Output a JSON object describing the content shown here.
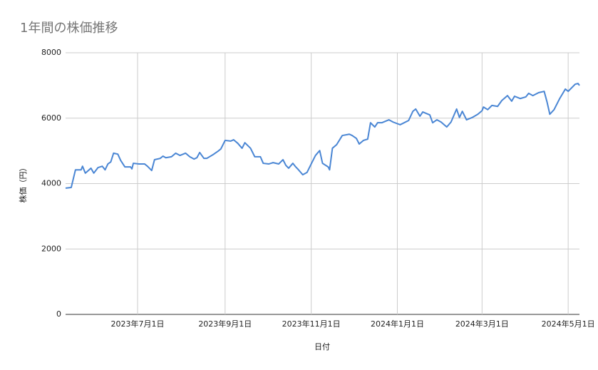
{
  "chart_data": {
    "type": "line",
    "title": "1年間の株価推移",
    "x_label": "日付",
    "y_label": "株価（円）",
    "x": [
      "2023-05-11",
      "2023-05-15",
      "2023-05-18",
      "2023-05-22",
      "2023-05-23",
      "2023-05-25",
      "2023-05-29",
      "2023-05-31",
      "2023-06-03",
      "2023-06-06",
      "2023-06-08",
      "2023-06-10",
      "2023-06-12",
      "2023-06-14",
      "2023-06-17",
      "2023-06-19",
      "2023-06-22",
      "2023-06-26",
      "2023-06-27",
      "2023-06-28",
      "2023-07-02",
      "2023-07-06",
      "2023-07-08",
      "2023-07-11",
      "2023-07-13",
      "2023-07-17",
      "2023-07-19",
      "2023-07-21",
      "2023-07-25",
      "2023-07-28",
      "2023-07-31",
      "2023-08-04",
      "2023-08-07",
      "2023-08-10",
      "2023-08-12",
      "2023-08-14",
      "2023-08-17",
      "2023-08-19",
      "2023-08-24",
      "2023-08-27",
      "2023-08-29",
      "2023-09-01",
      "2023-09-05",
      "2023-09-07",
      "2023-09-10",
      "2023-09-13",
      "2023-09-15",
      "2023-09-19",
      "2023-09-22",
      "2023-09-26",
      "2023-09-28",
      "2023-10-02",
      "2023-10-05",
      "2023-10-09",
      "2023-10-12",
      "2023-10-14",
      "2023-10-16",
      "2023-10-19",
      "2023-10-21",
      "2023-10-23",
      "2023-10-26",
      "2023-10-29",
      "2023-11-01",
      "2023-11-04",
      "2023-11-07",
      "2023-11-09",
      "2023-11-13",
      "2023-11-14",
      "2023-11-16",
      "2023-11-19",
      "2023-11-23",
      "2023-11-28",
      "2023-11-30",
      "2023-12-03",
      "2023-12-05",
      "2023-12-08",
      "2023-12-11",
      "2023-12-13",
      "2023-12-16",
      "2023-12-18",
      "2023-12-21",
      "2023-12-26",
      "2023-12-29",
      "2024-01-03",
      "2024-01-09",
      "2024-01-12",
      "2024-01-14",
      "2024-01-17",
      "2024-01-19",
      "2024-01-24",
      "2024-01-26",
      "2024-01-29",
      "2024-02-01",
      "2024-02-05",
      "2024-02-08",
      "2024-02-12",
      "2024-02-14",
      "2024-02-16",
      "2024-02-19",
      "2024-02-23",
      "2024-02-27",
      "2024-03-01",
      "2024-03-02",
      "2024-03-05",
      "2024-03-08",
      "2024-03-12",
      "2024-03-15",
      "2024-03-19",
      "2024-03-22",
      "2024-03-24",
      "2024-03-28",
      "2024-04-01",
      "2024-04-03",
      "2024-04-06",
      "2024-04-10",
      "2024-04-14",
      "2024-04-16",
      "2024-04-18",
      "2024-04-21",
      "2024-04-25",
      "2024-04-29",
      "2024-05-01",
      "2024-05-06",
      "2024-05-08",
      "2024-05-09"
    ],
    "values": [
      3860,
      3880,
      4420,
      4420,
      4530,
      4320,
      4470,
      4320,
      4490,
      4530,
      4420,
      4600,
      4660,
      4930,
      4900,
      4710,
      4510,
      4510,
      4450,
      4620,
      4600,
      4600,
      4530,
      4400,
      4730,
      4770,
      4840,
      4790,
      4820,
      4930,
      4860,
      4930,
      4820,
      4750,
      4790,
      4950,
      4770,
      4770,
      4900,
      4990,
      5060,
      5320,
      5300,
      5340,
      5230,
      5080,
      5250,
      5080,
      4820,
      4820,
      4620,
      4600,
      4640,
      4600,
      4730,
      4560,
      4470,
      4620,
      4510,
      4420,
      4270,
      4340,
      4600,
      4860,
      5010,
      4620,
      4510,
      4420,
      5080,
      5190,
      5470,
      5510,
      5470,
      5380,
      5210,
      5320,
      5360,
      5860,
      5730,
      5860,
      5860,
      5950,
      5880,
      5800,
      5930,
      6210,
      6280,
      6060,
      6190,
      6100,
      5860,
      5950,
      5880,
      5730,
      5880,
      6280,
      6020,
      6210,
      5950,
      6020,
      6120,
      6230,
      6340,
      6260,
      6390,
      6360,
      6540,
      6690,
      6520,
      6670,
      6600,
      6650,
      6760,
      6690,
      6780,
      6820,
      6500,
      6120,
      6260,
      6600,
      6890,
      6820,
      7040,
      7060,
      7000
    ],
    "color": "#4a86d4",
    "xlim": [
      "2023-05-11",
      "2024-05-09"
    ],
    "xticks": [
      {
        "value": "2023-07-01",
        "label": "2023年7月1日"
      },
      {
        "value": "2023-09-01",
        "label": "2023年9月1日"
      },
      {
        "value": "2023-11-01",
        "label": "2023年11月1日"
      },
      {
        "value": "2024-01-01",
        "label": "2024年1月1日"
      },
      {
        "value": "2024-03-01",
        "label": "2024年3月1日"
      },
      {
        "value": "2024-05-01",
        "label": "2024年5月1日"
      }
    ],
    "ylim": [
      0,
      8000
    ],
    "yticks": [
      0,
      2000,
      4000,
      6000,
      8000
    ],
    "grid": true
  }
}
